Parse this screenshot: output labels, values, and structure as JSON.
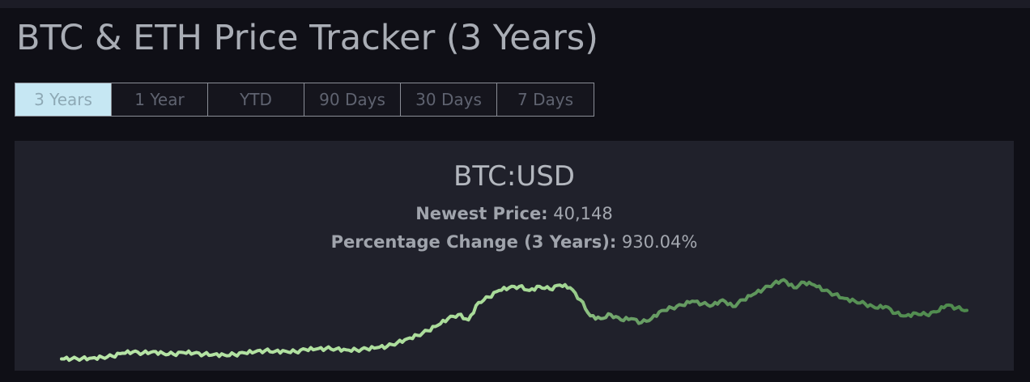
{
  "page": {
    "title": "BTC & ETH Price Tracker (3 Years)"
  },
  "tabs": [
    {
      "label": "3 Years",
      "active": true
    },
    {
      "label": "1 Year",
      "active": false
    },
    {
      "label": "YTD",
      "active": false
    },
    {
      "label": "90 Days",
      "active": false
    },
    {
      "label": "30 Days",
      "active": false
    },
    {
      "label": "7 Days",
      "active": false
    }
  ],
  "card": {
    "title": "BTC:USD",
    "newest_label": "Newest Price:",
    "newest_value": "40,148",
    "change_label": "Percentage Change (3 Years):",
    "change_value": "930.04%"
  },
  "colors": {
    "line_start": "#b9e6a8",
    "line_end": "#4e8a4d",
    "active_tab_bg": "#c6e7f3"
  },
  "chart_data": {
    "type": "line",
    "title": "",
    "xlabel": "",
    "ylabel": "",
    "ylim": [
      0,
      70000
    ],
    "series": [
      {
        "name": "",
        "values": [
          3900,
          4050,
          4200,
          4600,
          5200,
          6000,
          8200,
          9100,
          8300,
          9400,
          8000,
          7500,
          8700,
          8200,
          7400,
          7300,
          6900,
          7200,
          8400,
          9200,
          10100,
          9600,
          9700,
          9300,
          11000,
          11200,
          11700,
          11400,
          10700,
          10600,
          11500,
          12300,
          13300,
          16000,
          19000,
          21500,
          25000,
          29000,
          34000,
          37000,
          33000,
          46000,
          50000,
          55000,
          57000,
          58000,
          55000,
          58000,
          56000,
          59000,
          57000,
          48000,
          36000,
          34000,
          37000,
          33000,
          34000,
          31000,
          34000,
          40000,
          42000,
          44000,
          47000,
          45000,
          44000,
          48000,
          43000,
          48000,
          52000,
          56000,
          60000,
          63000,
          57000,
          61000,
          59000,
          55000,
          52000,
          49000,
          47000,
          45000,
          42000,
          43000,
          38000,
          36000,
          38000,
          37000,
          39000,
          44000,
          42000,
          40148
        ]
      }
    ]
  }
}
